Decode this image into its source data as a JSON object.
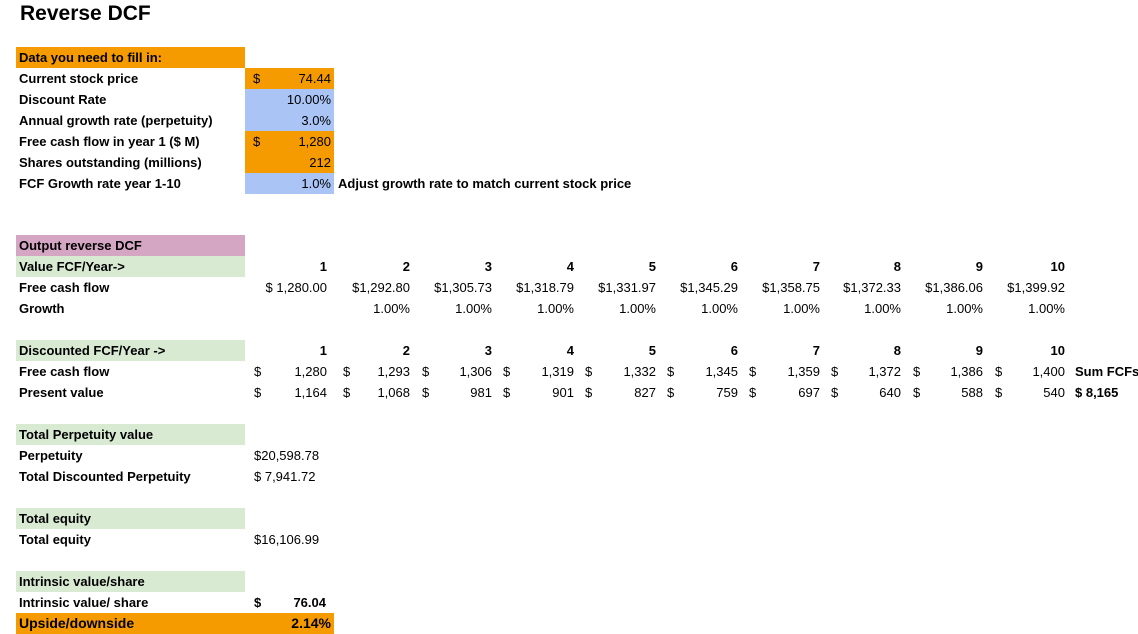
{
  "title": "Reverse DCF",
  "inputs": {
    "header": "Data you need to fill in:",
    "rows": [
      {
        "label": "Current stock price",
        "dollar": "$",
        "value": "74.44"
      },
      {
        "label": "Discount Rate",
        "dollar": "",
        "value": "10.00%"
      },
      {
        "label": "Annual growth rate (perpetuity)",
        "dollar": "",
        "value": "3.0%"
      },
      {
        "label": "Free cash flow in year 1 ($ M)",
        "dollar": "$",
        "value": "1,280"
      },
      {
        "label": "Shares outstanding (millions)",
        "dollar": "",
        "value": "212"
      },
      {
        "label": "FCF Growth rate year 1-10",
        "dollar": "",
        "value": "1.0%"
      }
    ],
    "note": "Adjust growth rate to match current stock price"
  },
  "output": {
    "header": "Output reverse DCF",
    "year_row_label": "Value FCF/Year->",
    "years": [
      "1",
      "2",
      "3",
      "4",
      "5",
      "6",
      "7",
      "8",
      "9",
      "10"
    ],
    "fcf_label": "Free cash flow",
    "fcf_values": [
      "$ 1,280.00",
      "$1,292.80",
      "$1,305.73",
      "$1,318.79",
      "$1,331.97",
      "$1,345.29",
      "$1,358.75",
      "$1,372.33",
      "$1,386.06",
      "$1,399.92"
    ],
    "growth_label": "Growth",
    "growth_values": [
      "",
      "1.00%",
      "1.00%",
      "1.00%",
      "1.00%",
      "1.00%",
      "1.00%",
      "1.00%",
      "1.00%",
      "1.00%"
    ]
  },
  "discounted": {
    "year_row_label": "Discounted FCF/Year ->",
    "years": [
      "1",
      "2",
      "3",
      "4",
      "5",
      "6",
      "7",
      "8",
      "9",
      "10"
    ],
    "fcf_label": "Free cash flow",
    "fcf_values": [
      "1,280",
      "1,293",
      "1,306",
      "1,319",
      "1,332",
      "1,345",
      "1,359",
      "1,372",
      "1,386",
      "1,400"
    ],
    "pv_label": "Present value",
    "pv_values": [
      "1,164",
      "1,068",
      "981",
      "901",
      "827",
      "759",
      "697",
      "640",
      "588",
      "540"
    ],
    "currency": "$",
    "sum_label": "Sum FCFs",
    "sum_value": "$  8,165"
  },
  "perpetuity": {
    "header": "Total Perpetuity value",
    "perpetuity_label": "Perpetuity",
    "perpetuity_value": "$20,598.78",
    "discounted_label": "Total Discounted Perpetuity",
    "discounted_value": "$  7,941.72"
  },
  "equity": {
    "header": "Total equity",
    "label": "Total equity",
    "value": "$16,106.99"
  },
  "intrinsic": {
    "header": "Intrinsic value/share",
    "label": "Intrinsic value/ share",
    "dollar": "$",
    "value": "76.04",
    "upside_label": "Upside/downside",
    "upside_value": "2.14%"
  },
  "colors": {
    "input_orange": "#f59b00",
    "input_blue": "#a9c4f5",
    "output_pink": "#d4a6c3",
    "section_green": "#d9ead3"
  }
}
